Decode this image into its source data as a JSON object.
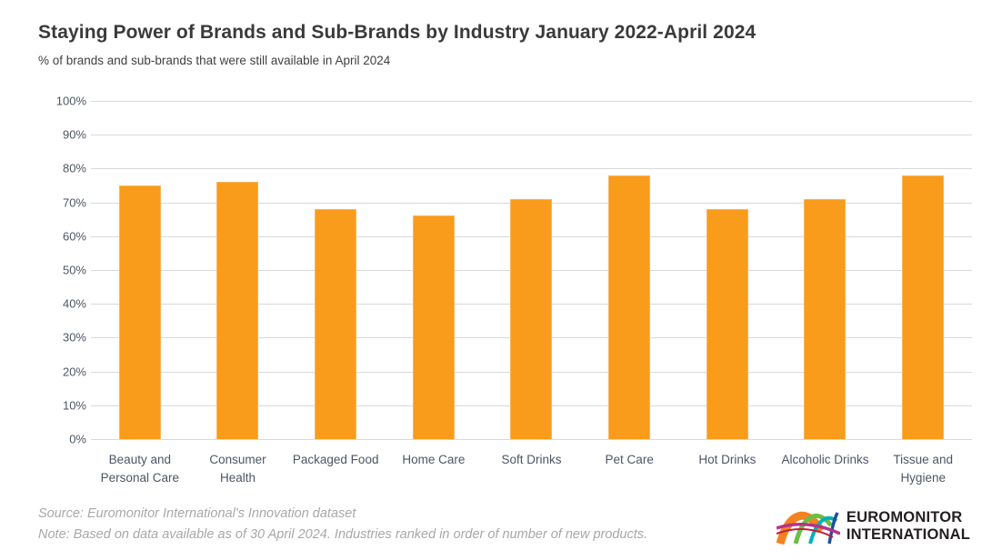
{
  "chart_data": {
    "type": "bar",
    "title": "Staying Power of Brands and Sub-Brands by Industry January 2022-April 2024",
    "subtitle": "% of brands and sub-brands that were still available in April 2024",
    "categories": [
      "Beauty and Personal Care",
      "Consumer Health",
      "Packaged Food",
      "Home Care",
      "Soft Drinks",
      "Pet Care",
      "Hot Drinks",
      "Alcoholic Drinks",
      "Tissue and Hygiene"
    ],
    "values": [
      75,
      76,
      68,
      66,
      71,
      78,
      68,
      71,
      78
    ],
    "xlabel": "",
    "ylabel": "",
    "ylim": [
      0,
      100
    ],
    "ytick_step": 10,
    "ytick_labels": [
      "0%",
      "10%",
      "20%",
      "30%",
      "40%",
      "50%",
      "60%",
      "70%",
      "80%",
      "90%",
      "100%"
    ],
    "grid": true,
    "legend": "none",
    "bar_color": "#f99c1b",
    "gridline_color": "#d9d9d9"
  },
  "footer": {
    "source": "Source: Euromonitor International's Innovation dataset",
    "note": "Note: Based on data available as of 30 April 2024. Industries ranked in order of number of new products."
  },
  "logo": {
    "icon": "euromonitor-arcs-logo-icon",
    "line1": "EUROMONITOR",
    "line2": "INTERNATIONAL"
  }
}
